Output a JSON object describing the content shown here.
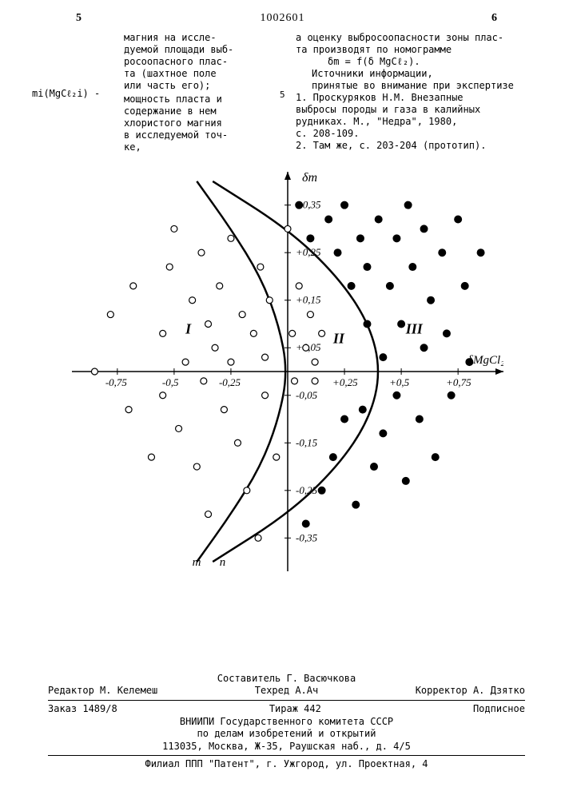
{
  "header": {
    "left_col_num": "5",
    "patent_number": "1002601",
    "right_col_num": "6"
  },
  "left_column": {
    "frag1": "магния на иссле-\nдуемой площади выб-\nросоопасного плас-\nта (шахтное поле\nили часть его);",
    "var": "mi(MgCℓ₂i) -",
    "frag2": "мощность пласта и\nсодержание в нем\nхлористого магния\nв исследуемой точ-\nке,"
  },
  "right_column": {
    "frag1": "а оценку выбросоопасности зоны плас-\nта производят по номограмме",
    "formula": "δm = f(δ MgCℓ₂).",
    "frag2": "Источники информации,\nпринятые во внимание при экспертизе",
    "ref1": "1. Проскуряков Н.М. Внезапные\nвыбросы породы и газа в калийных\nрудниках. М., \"Недра\", 1980,\nс. 208-109.",
    "ref2": "2. Там же, с. 203-204 (прототип)."
  },
  "margin_5": "5",
  "chart": {
    "type": "scatter",
    "background_color": "#ffffff",
    "axis_color": "#000000",
    "curve_color": "#000000",
    "curve_width": 2.5,
    "open_marker": {
      "fill": "#ffffff",
      "stroke": "#000000",
      "r": 4
    },
    "filled_marker": {
      "fill": "#000000",
      "stroke": "#000000",
      "r": 4.5
    },
    "y_axis_label": "δm",
    "x_axis_label": "δMgCl₂",
    "y_ticks": [
      -0.35,
      -0.25,
      -0.15,
      -0.05,
      0.05,
      0.15,
      0.25,
      0.35
    ],
    "y_tick_labels": [
      "-0,35",
      "-0,25",
      "-0,15",
      "-0,05",
      "+0,05",
      "+0,15",
      "+0,25",
      "+0,35"
    ],
    "x_ticks": [
      -0.75,
      -0.5,
      -0.25,
      0.25,
      0.5,
      0.75
    ],
    "x_tick_labels": [
      "-0,75",
      "-0,5",
      "-0,25",
      "+0,25",
      "+0,5",
      "+0,75"
    ],
    "region_labels": {
      "I": "I",
      "II": "II",
      "III": "III"
    },
    "curve_labels": {
      "m": "m",
      "n": "n"
    },
    "curve_m": [
      [
        -0.4,
        -0.4
      ],
      [
        -0.25,
        -0.3
      ],
      [
        -0.12,
        -0.2
      ],
      [
        -0.04,
        -0.1
      ],
      [
        0.0,
        0.0
      ],
      [
        -0.04,
        0.1
      ],
      [
        -0.12,
        0.2
      ],
      [
        -0.25,
        0.3
      ],
      [
        -0.4,
        0.4
      ]
    ],
    "curve_n": [
      [
        -0.33,
        -0.4
      ],
      [
        0.0,
        -0.3
      ],
      [
        0.22,
        -0.2
      ],
      [
        0.36,
        -0.1
      ],
      [
        0.41,
        0.0
      ],
      [
        0.36,
        0.1
      ],
      [
        0.22,
        0.2
      ],
      [
        0.0,
        0.3
      ],
      [
        -0.33,
        0.4
      ]
    ],
    "open_points": [
      [
        -0.85,
        0.0
      ],
      [
        -0.78,
        0.12
      ],
      [
        -0.7,
        -0.08
      ],
      [
        -0.68,
        0.18
      ],
      [
        -0.6,
        -0.18
      ],
      [
        -0.55,
        0.08
      ],
      [
        -0.55,
        -0.05
      ],
      [
        -0.52,
        0.22
      ],
      [
        -0.5,
        0.3
      ],
      [
        -0.48,
        -0.12
      ],
      [
        -0.45,
        0.02
      ],
      [
        -0.42,
        0.15
      ],
      [
        -0.4,
        -0.2
      ],
      [
        -0.38,
        0.25
      ],
      [
        -0.37,
        -0.02
      ],
      [
        -0.35,
        0.1
      ],
      [
        -0.35,
        -0.3
      ],
      [
        -0.32,
        0.05
      ],
      [
        -0.3,
        0.18
      ],
      [
        -0.28,
        -0.08
      ],
      [
        -0.25,
        0.28
      ],
      [
        -0.25,
        0.02
      ],
      [
        -0.22,
        -0.15
      ],
      [
        -0.2,
        0.12
      ],
      [
        -0.18,
        -0.25
      ],
      [
        -0.15,
        0.08
      ],
      [
        -0.13,
        -0.35
      ],
      [
        -0.12,
        0.22
      ],
      [
        -0.1,
        0.03
      ],
      [
        -0.1,
        -0.05
      ],
      [
        -0.08,
        0.15
      ],
      [
        -0.05,
        -0.18
      ],
      [
        0.0,
        0.3
      ],
      [
        0.02,
        0.08
      ],
      [
        0.03,
        -0.02
      ],
      [
        0.05,
        0.18
      ],
      [
        0.08,
        0.05
      ],
      [
        0.1,
        0.12
      ],
      [
        0.12,
        0.02
      ],
      [
        0.12,
        -0.02
      ],
      [
        0.15,
        0.08
      ]
    ],
    "filled_points": [
      [
        0.05,
        0.35
      ],
      [
        0.08,
        -0.32
      ],
      [
        0.1,
        0.28
      ],
      [
        0.15,
        -0.25
      ],
      [
        0.18,
        0.32
      ],
      [
        0.2,
        -0.18
      ],
      [
        0.22,
        0.25
      ],
      [
        0.25,
        -0.1
      ],
      [
        0.25,
        0.35
      ],
      [
        0.28,
        0.18
      ],
      [
        0.3,
        -0.28
      ],
      [
        0.32,
        0.28
      ],
      [
        0.33,
        -0.08
      ],
      [
        0.35,
        0.1
      ],
      [
        0.35,
        0.22
      ],
      [
        0.38,
        -0.2
      ],
      [
        0.4,
        0.32
      ],
      [
        0.42,
        0.03
      ],
      [
        0.42,
        -0.13
      ],
      [
        0.45,
        0.18
      ],
      [
        0.48,
        0.28
      ],
      [
        0.48,
        -0.05
      ],
      [
        0.5,
        0.1
      ],
      [
        0.52,
        -0.23
      ],
      [
        0.53,
        0.35
      ],
      [
        0.55,
        0.22
      ],
      [
        0.58,
        -0.1
      ],
      [
        0.6,
        0.05
      ],
      [
        0.6,
        0.3
      ],
      [
        0.63,
        0.15
      ],
      [
        0.65,
        -0.18
      ],
      [
        0.68,
        0.25
      ],
      [
        0.7,
        0.08
      ],
      [
        0.72,
        -0.05
      ],
      [
        0.75,
        0.32
      ],
      [
        0.78,
        0.18
      ],
      [
        0.8,
        0.02
      ],
      [
        0.85,
        0.25
      ]
    ],
    "xlim": [
      -0.95,
      0.95
    ],
    "ylim": [
      -0.42,
      0.42
    ]
  },
  "footer": {
    "compiler": "Составитель Г. Васючкова",
    "editor": "Редактор М. Келемеш",
    "tech": "Техред А.Ач",
    "corrector": "Корректор А. Дзятко",
    "order": "Заказ 1489/8",
    "tirazh": "Тираж 442",
    "sub": "Подписное",
    "org1": "ВНИИПИ Государственного комитета СССР",
    "org2": "по делам изобретений и открытий",
    "addr1": "113035, Москва, Ж-35, Раушская наб., д. 4/5",
    "branch": "Филиал ППП \"Патент\", г. Ужгород, ул. Проектная, 4"
  }
}
